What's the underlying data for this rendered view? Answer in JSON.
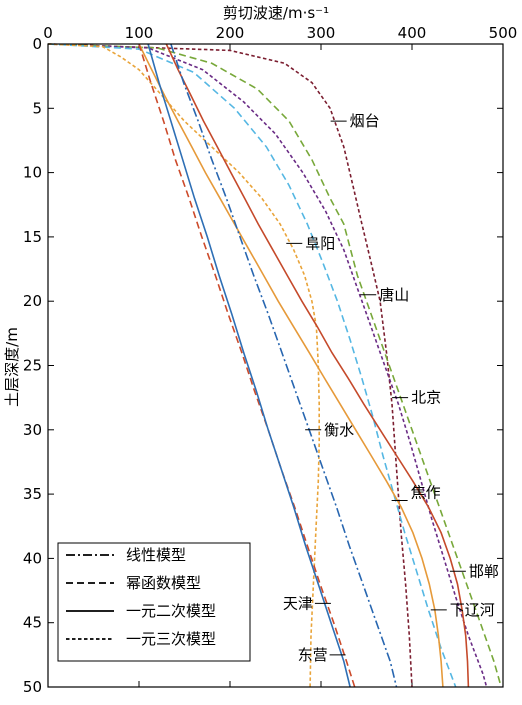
{
  "chart_data": {
    "type": "line",
    "title": "",
    "xlabel": "剪切波速/m·s⁻¹",
    "ylabel": "土层深度/m",
    "xlim": [
      0,
      500
    ],
    "ylim": [
      0,
      50
    ],
    "y_reversed": true,
    "x_axis_position": "top",
    "xticks": [
      0,
      100,
      200,
      300,
      400,
      500
    ],
    "yticks": [
      0,
      5,
      10,
      15,
      20,
      25,
      30,
      35,
      40,
      45,
      50
    ],
    "legend": {
      "placement": "bottom-left",
      "entries": [
        {
          "label": "线性模型",
          "style": "dashdot"
        },
        {
          "label": "幂函数模型",
          "style": "dashed"
        },
        {
          "label": "一元二次模型",
          "style": "solid"
        },
        {
          "label": "一元三次模型",
          "style": "dotted"
        }
      ]
    },
    "series": [
      {
        "name": "烟台",
        "style": "dotted",
        "color": "#7b1e30",
        "points": [
          [
            0,
            0
          ],
          [
            200,
            0.5
          ],
          [
            260,
            1.5
          ],
          [
            290,
            3
          ],
          [
            310,
            5
          ],
          [
            325,
            8
          ],
          [
            335,
            11
          ],
          [
            345,
            14
          ],
          [
            355,
            17
          ],
          [
            365,
            20
          ],
          [
            372,
            24
          ],
          [
            378,
            28
          ],
          [
            383,
            33
          ],
          [
            388,
            38
          ],
          [
            393,
            42
          ],
          [
            397,
            46
          ],
          [
            400,
            50
          ]
        ]
      },
      {
        "name": "唐山",
        "style": "dashed",
        "color": "#78a83a",
        "points": [
          [
            0,
            0
          ],
          [
            120,
            0.3
          ],
          [
            180,
            1.5
          ],
          [
            230,
            3.5
          ],
          [
            265,
            6
          ],
          [
            290,
            9
          ],
          [
            310,
            12
          ],
          [
            325,
            14
          ],
          [
            340,
            18
          ],
          [
            355,
            21
          ],
          [
            370,
            24
          ],
          [
            385,
            27
          ],
          [
            400,
            30
          ],
          [
            415,
            33
          ],
          [
            430,
            36
          ],
          [
            445,
            39
          ],
          [
            460,
            42
          ],
          [
            475,
            45
          ],
          [
            490,
            48
          ],
          [
            498,
            50
          ]
        ]
      },
      {
        "name": "北京",
        "style": "dotted",
        "color": "#6a2c85",
        "points": [
          [
            0,
            0
          ],
          [
            110,
            0.3
          ],
          [
            170,
            2
          ],
          [
            215,
            4.5
          ],
          [
            250,
            7
          ],
          [
            280,
            10
          ],
          [
            305,
            13
          ],
          [
            325,
            16
          ],
          [
            340,
            19
          ],
          [
            355,
            22
          ],
          [
            370,
            25
          ],
          [
            385,
            28
          ],
          [
            398,
            31
          ],
          [
            410,
            34
          ],
          [
            422,
            37
          ],
          [
            435,
            40
          ],
          [
            448,
            43
          ],
          [
            462,
            46
          ],
          [
            478,
            49
          ],
          [
            482,
            50
          ]
        ]
      },
      {
        "name": "焦作",
        "style": "dashed",
        "color": "#55b7e3",
        "points": [
          [
            0,
            0
          ],
          [
            100,
            0.4
          ],
          [
            160,
            2.2
          ],
          [
            205,
            5
          ],
          [
            240,
            8
          ],
          [
            265,
            11
          ],
          [
            285,
            14
          ],
          [
            302,
            17
          ],
          [
            318,
            20
          ],
          [
            332,
            23
          ],
          [
            345,
            26
          ],
          [
            357,
            29
          ],
          [
            368,
            32
          ],
          [
            380,
            35
          ],
          [
            392,
            38
          ],
          [
            405,
            41
          ],
          [
            418,
            44
          ],
          [
            432,
            47
          ],
          [
            448,
            50
          ]
        ]
      },
      {
        "name": "阜阳",
        "style": "dotted",
        "color": "#e9a43a",
        "points": [
          [
            0,
            0
          ],
          [
            60,
            0.2
          ],
          [
            80,
            1
          ],
          [
            100,
            2
          ],
          [
            125,
            4
          ],
          [
            150,
            6
          ],
          [
            180,
            8
          ],
          [
            210,
            10
          ],
          [
            235,
            12
          ],
          [
            255,
            14
          ],
          [
            270,
            16
          ],
          [
            282,
            18
          ],
          [
            290,
            20
          ],
          [
            295,
            22
          ],
          [
            297,
            25
          ],
          [
            298,
            28
          ],
          [
            298,
            31
          ],
          [
            297,
            34
          ],
          [
            295,
            37
          ],
          [
            293,
            40
          ],
          [
            291,
            43
          ],
          [
            289,
            46
          ],
          [
            288,
            50
          ]
        ]
      },
      {
        "name": "邯郸",
        "style": "solid",
        "color": "#c54a2b",
        "points": [
          [
            130,
            0
          ],
          [
            143,
            2
          ],
          [
            157,
            4
          ],
          [
            171,
            6
          ],
          [
            186,
            8
          ],
          [
            201,
            10
          ],
          [
            216,
            12
          ],
          [
            231,
            14
          ],
          [
            247,
            16
          ],
          [
            263,
            18
          ],
          [
            279,
            20
          ],
          [
            296,
            22
          ],
          [
            312,
            24
          ],
          [
            330,
            26
          ],
          [
            347,
            28
          ],
          [
            365,
            30
          ],
          [
            383,
            32
          ],
          [
            401,
            34
          ],
          [
            418,
            36
          ],
          [
            432,
            38
          ],
          [
            442,
            40
          ],
          [
            450,
            42
          ],
          [
            455,
            44
          ],
          [
            459,
            46
          ],
          [
            461,
            48
          ],
          [
            462,
            50
          ]
        ]
      },
      {
        "name": "下辽河",
        "style": "solid",
        "color": "#e69a3a",
        "points": [
          [
            100,
            0
          ],
          [
            114,
            2
          ],
          [
            128,
            4
          ],
          [
            143,
            6
          ],
          [
            158,
            8
          ],
          [
            173,
            10
          ],
          [
            189,
            12
          ],
          [
            205,
            14
          ],
          [
            221,
            16
          ],
          [
            237,
            18
          ],
          [
            253,
            20
          ],
          [
            270,
            22
          ],
          [
            287,
            24
          ],
          [
            304,
            26
          ],
          [
            321,
            28
          ],
          [
            338,
            30
          ],
          [
            355,
            32
          ],
          [
            372,
            34
          ],
          [
            388,
            36
          ],
          [
            401,
            38
          ],
          [
            411,
            40
          ],
          [
            419,
            42
          ],
          [
            425,
            44
          ],
          [
            429,
            46
          ],
          [
            432,
            48
          ],
          [
            434,
            50
          ]
        ]
      },
      {
        "name": "衡水",
        "style": "dashdot",
        "color": "#2866b0",
        "points": [
          [
            135,
            0
          ],
          [
            149,
            3
          ],
          [
            165,
            6
          ],
          [
            180,
            9
          ],
          [
            196,
            12
          ],
          [
            211,
            15
          ],
          [
            226,
            18
          ],
          [
            242,
            21
          ],
          [
            257,
            24
          ],
          [
            272,
            27
          ],
          [
            287,
            30
          ],
          [
            302,
            33
          ],
          [
            317,
            36
          ],
          [
            331,
            39
          ],
          [
            346,
            42
          ],
          [
            361,
            45
          ],
          [
            376,
            48
          ],
          [
            383,
            50
          ]
        ]
      },
      {
        "name": "天津",
        "style": "dashed",
        "color": "#cc4a2a",
        "points": [
          [
            100,
            0
          ],
          [
            113,
            3
          ],
          [
            127,
            6
          ],
          [
            140,
            9
          ],
          [
            155,
            12
          ],
          [
            169,
            15
          ],
          [
            184,
            18
          ],
          [
            198,
            21
          ],
          [
            213,
            24
          ],
          [
            227,
            27
          ],
          [
            242,
            30
          ],
          [
            256,
            33
          ],
          [
            271,
            36
          ],
          [
            285,
            39
          ],
          [
            299,
            42
          ],
          [
            314,
            45
          ],
          [
            328,
            48
          ],
          [
            337,
            50
          ]
        ]
      },
      {
        "name": "东营",
        "style": "solid",
        "color": "#2e6fb5",
        "points": [
          [
            110,
            0
          ],
          [
            122,
            3
          ],
          [
            135,
            6
          ],
          [
            148,
            9
          ],
          [
            161,
            12
          ],
          [
            175,
            15
          ],
          [
            188,
            18
          ],
          [
            202,
            21
          ],
          [
            215,
            24
          ],
          [
            229,
            27
          ],
          [
            242,
            30
          ],
          [
            256,
            33
          ],
          [
            270,
            36
          ],
          [
            283,
            39
          ],
          [
            297,
            42
          ],
          [
            311,
            45
          ],
          [
            325,
            48
          ],
          [
            332,
            50
          ]
        ]
      }
    ],
    "annotations": [
      {
        "text": "烟台",
        "series": "烟台"
      },
      {
        "text": "阜阳",
        "series": "阜阳"
      },
      {
        "text": "唐山",
        "series": "唐山"
      },
      {
        "text": "北京",
        "series": "北京"
      },
      {
        "text": "衡水",
        "series": "衡水"
      },
      {
        "text": "焦作",
        "series": "焦作"
      },
      {
        "text": "邯郸",
        "series": "邯郸"
      },
      {
        "text": "天津",
        "series": "天津"
      },
      {
        "text": "下辽河",
        "series": "下辽河"
      },
      {
        "text": "东营",
        "series": "东营"
      }
    ]
  }
}
